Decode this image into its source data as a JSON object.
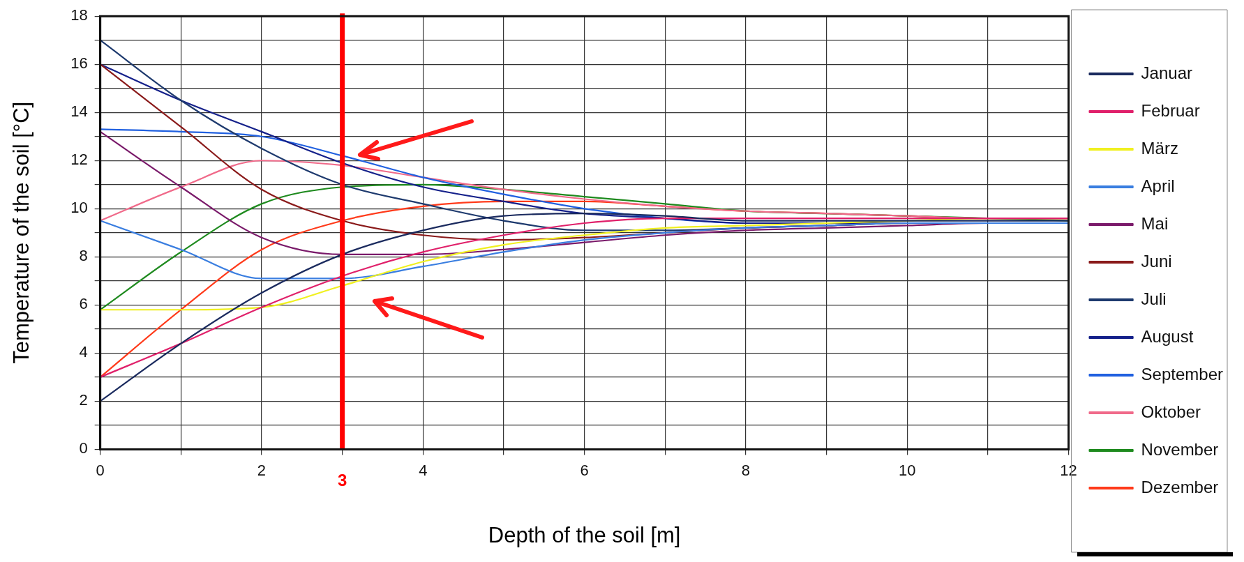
{
  "chart_data": {
    "type": "line",
    "xlabel": "Depth of the soil [m]",
    "ylabel": "Temperature of the soil [°C]",
    "x": [
      0,
      1,
      2,
      3,
      4,
      5,
      6,
      7,
      8,
      9,
      10,
      11,
      12
    ],
    "xlim": [
      0,
      12
    ],
    "xticks": [
      0,
      {
        "value": 1,
        "label": null
      },
      2,
      {
        "value": 3,
        "label": null
      },
      4,
      {
        "value": 5,
        "label": null
      },
      6,
      {
        "value": 7,
        "label": null
      },
      8,
      {
        "value": 9,
        "label": null
      },
      10,
      {
        "value": 11,
        "label": null
      },
      12
    ],
    "ylim": [
      0,
      18
    ],
    "yticks": [
      0,
      {
        "value": 1,
        "label": null
      },
      2,
      {
        "value": 3,
        "label": null
      },
      4,
      {
        "value": 5,
        "label": null
      },
      6,
      {
        "value": 7,
        "label": null
      },
      8,
      {
        "value": 9,
        "label": null
      },
      10,
      {
        "value": 11,
        "label": null
      },
      12,
      {
        "value": 13,
        "label": null
      },
      14,
      {
        "value": 15,
        "label": null
      },
      16,
      {
        "value": 17,
        "label": null
      },
      18
    ],
    "grid": true,
    "legend": "right",
    "marker": "none",
    "ref_lines": [
      {
        "axis": "x",
        "value": 3,
        "label": "3",
        "color": "#ff0000"
      }
    ],
    "series": [
      {
        "name": "Januar",
        "color": "#1a2a5e",
        "values": [
          2,
          4.4,
          6.5,
          8.1,
          9.1,
          9.7,
          9.8,
          9.7,
          9.5,
          9.5,
          9.5,
          9.5,
          9.5
        ]
      },
      {
        "name": "Februar",
        "color": "#e0206a",
        "values": [
          3,
          4.4,
          5.9,
          7.2,
          8.2,
          8.9,
          9.4,
          9.6,
          9.6,
          9.6,
          9.6,
          9.6,
          9.6
        ]
      },
      {
        "name": "März",
        "color": "#f0f020",
        "values": [
          5.8,
          5.8,
          5.9,
          6.8,
          7.8,
          8.5,
          8.9,
          9.2,
          9.3,
          9.4,
          9.5,
          9.6,
          9.6
        ]
      },
      {
        "name": "April",
        "color": "#3a7ee0",
        "values": [
          9.5,
          8.3,
          7.1,
          7.1,
          7.6,
          8.2,
          8.7,
          9.0,
          9.2,
          9.3,
          9.4,
          9.4,
          9.4
        ]
      },
      {
        "name": "Mai",
        "color": "#7a1a6a",
        "values": [
          13.2,
          10.9,
          8.8,
          8.1,
          8.1,
          8.3,
          8.6,
          8.9,
          9.1,
          9.2,
          9.3,
          9.4,
          9.4
        ]
      },
      {
        "name": "Juni",
        "color": "#8a1a1a",
        "values": [
          16,
          13.4,
          10.8,
          9.5,
          8.9,
          8.7,
          8.8,
          9.0,
          9.2,
          9.3,
          9.4,
          9.4,
          9.4
        ]
      },
      {
        "name": "Juli",
        "color": "#1e3a6e",
        "values": [
          17,
          14.5,
          12.5,
          11.0,
          10.2,
          9.5,
          9.1,
          9.1,
          9.2,
          9.3,
          9.4,
          9.4,
          9.4
        ]
      },
      {
        "name": "August",
        "color": "#14208a",
        "values": [
          16,
          14.5,
          13.2,
          11.9,
          10.9,
          10.3,
          9.8,
          9.6,
          9.4,
          9.4,
          9.4,
          9.4,
          9.4
        ]
      },
      {
        "name": "September",
        "color": "#2060e0",
        "values": [
          13.3,
          13.2,
          13.0,
          12.2,
          11.3,
          10.6,
          10.0,
          9.6,
          9.4,
          9.4,
          9.4,
          9.4,
          9.4
        ]
      },
      {
        "name": "Oktober",
        "color": "#f06a8a",
        "values": [
          9.5,
          10.9,
          12.0,
          11.8,
          11.3,
          10.8,
          10.4,
          10.1,
          9.9,
          9.8,
          9.7,
          9.6,
          9.6
        ]
      },
      {
        "name": "November",
        "color": "#1e8a1e",
        "values": [
          5.8,
          8.2,
          10.2,
          10.9,
          11.0,
          10.8,
          10.5,
          10.2,
          9.9,
          9.8,
          9.7,
          9.6,
          9.5
        ]
      },
      {
        "name": "Dezember",
        "color": "#ff3a1a",
        "values": [
          3,
          5.8,
          8.3,
          9.5,
          10.1,
          10.3,
          10.3,
          10.1,
          9.9,
          9.8,
          9.7,
          9.6,
          9.6
        ]
      }
    ]
  }
}
